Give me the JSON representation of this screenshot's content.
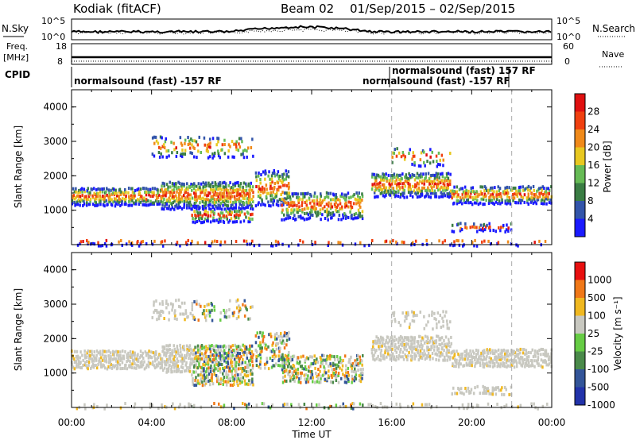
{
  "header": {
    "radar": "Kodiak (fitACF)",
    "beam": "Beam 02",
    "date_range": "01/Sep/2015 – 02/Sep/2015"
  },
  "status_panels": {
    "nsky_label": "N.Sky",
    "nsearch_label": "N.Search",
    "freq_label_line1": "Freq.",
    "freq_label_line2": "[MHz]",
    "nave_label": "Nave",
    "cpid_label": "CPID",
    "noise_left_ticks": [
      "10^5",
      "10^0"
    ],
    "noise_right_ticks": [
      "10^5",
      "10^0"
    ],
    "freq_left_ticks": [
      "18",
      "8"
    ],
    "nave_right_ticks": [
      "60",
      "0"
    ],
    "cpid_entries": [
      "normalsound (fast) -157 RF",
      "normalsound (fast) 157 RF",
      "normalsound (fast) -157 RF"
    ]
  },
  "chart_data": [
    {
      "type": "heatmap",
      "title": "",
      "xlabel": "",
      "ylabel": "Slant Range [km]",
      "x_ticks": [
        "00:00",
        "04:00",
        "08:00",
        "12:00",
        "16:00",
        "20:00",
        "00:00"
      ],
      "y_ticks": [
        "1000",
        "2000",
        "3000",
        "4000"
      ],
      "xlim": [
        0,
        24
      ],
      "ylim": [
        0,
        4500
      ],
      "colorbar_label": "Power [dB]",
      "colorbar_ticks": [
        "4",
        "8",
        "12",
        "16",
        "20",
        "24",
        "28"
      ],
      "colorbar_colors": [
        "#1a1aff",
        "#3355aa",
        "#3a7d44",
        "#66bb55",
        "#e8c820",
        "#f08a1a",
        "#f04010",
        "#e01010"
      ],
      "colorbar_range": [
        0,
        32
      ],
      "markers_hours": [
        16,
        22
      ]
    },
    {
      "type": "heatmap",
      "title": "",
      "xlabel": "Time UT",
      "ylabel": "Slant Range [km]",
      "x_ticks": [
        "00:00",
        "04:00",
        "08:00",
        "12:00",
        "16:00",
        "20:00",
        "00:00"
      ],
      "y_ticks": [
        "1000",
        "2000",
        "3000",
        "4000"
      ],
      "xlim": [
        0,
        24
      ],
      "ylim": [
        0,
        4500
      ],
      "colorbar_label": "Velocity [m s⁻¹]",
      "colorbar_ticks": [
        "1000",
        "500",
        "100",
        "25",
        "-25",
        "-100",
        "-500",
        "-1000"
      ],
      "colorbar_colors": [
        "#2233aa",
        "#335599",
        "#4a8a4a",
        "#66cc44",
        "#c8c8c0",
        "#f0b820",
        "#f07818",
        "#e81010"
      ],
      "markers_hours": [
        16,
        22
      ]
    }
  ]
}
